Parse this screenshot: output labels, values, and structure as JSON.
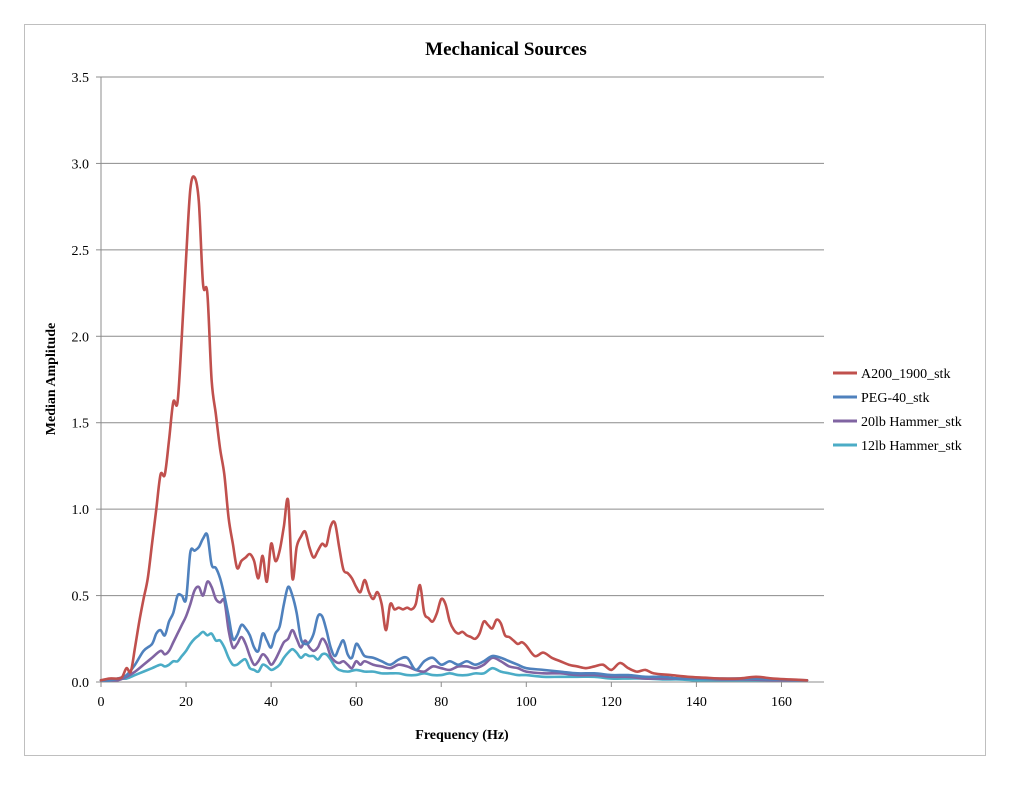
{
  "chart_data": {
    "type": "line",
    "title": "Mechanical Sources",
    "xlabel": "Frequency (Hz)",
    "ylabel": "Median Amplitude",
    "xlim": [
      0,
      170
    ],
    "ylim": [
      0,
      3.5
    ],
    "x_ticks": [
      "0",
      "20",
      "40",
      "60",
      "80",
      "100",
      "120",
      "140",
      "160"
    ],
    "y_ticks": [
      "0.0",
      "0.5",
      "1.0",
      "1.5",
      "2.0",
      "2.5",
      "3.0",
      "3.5"
    ],
    "grid": "horizontal",
    "legend_position": "right",
    "series": [
      {
        "name": "A200_1900_stk",
        "color": "#c0504d",
        "x": [
          0,
          2,
          4,
          5,
          6,
          7,
          8,
          9,
          10,
          11,
          12,
          13,
          14,
          15,
          16,
          17,
          18,
          19,
          20,
          21,
          22,
          23,
          24,
          25,
          26,
          27,
          28,
          29,
          30,
          31,
          32,
          33,
          34,
          35,
          36,
          37,
          38,
          39,
          40,
          41,
          42,
          43,
          44,
          45,
          46,
          47,
          48,
          49,
          50,
          51,
          52,
          53,
          54,
          55,
          56,
          57,
          58,
          59,
          60,
          61,
          62,
          63,
          64,
          65,
          66,
          67,
          68,
          69,
          70,
          71,
          72,
          73,
          74,
          75,
          76,
          77,
          78,
          79,
          80,
          81,
          82,
          83,
          84,
          85,
          86,
          87,
          88,
          89,
          90,
          91,
          92,
          93,
          94,
          95,
          96,
          97,
          98,
          99,
          100,
          102,
          104,
          106,
          108,
          110,
          112,
          114,
          116,
          118,
          120,
          122,
          124,
          126,
          128,
          130,
          134,
          138,
          142,
          146,
          150,
          154,
          158,
          162,
          166
        ],
        "y": [
          0.01,
          0.02,
          0.02,
          0.03,
          0.08,
          0.06,
          0.2,
          0.35,
          0.48,
          0.6,
          0.8,
          1.0,
          1.2,
          1.2,
          1.4,
          1.62,
          1.62,
          2.0,
          2.45,
          2.85,
          2.92,
          2.78,
          2.3,
          2.25,
          1.75,
          1.55,
          1.35,
          1.2,
          0.95,
          0.8,
          0.66,
          0.7,
          0.72,
          0.74,
          0.7,
          0.6,
          0.73,
          0.58,
          0.8,
          0.7,
          0.76,
          0.9,
          1.05,
          0.6,
          0.78,
          0.84,
          0.87,
          0.78,
          0.72,
          0.76,
          0.8,
          0.79,
          0.9,
          0.92,
          0.78,
          0.65,
          0.63,
          0.6,
          0.55,
          0.52,
          0.59,
          0.52,
          0.48,
          0.52,
          0.45,
          0.3,
          0.45,
          0.42,
          0.43,
          0.42,
          0.43,
          0.42,
          0.45,
          0.56,
          0.4,
          0.37,
          0.35,
          0.4,
          0.48,
          0.45,
          0.35,
          0.3,
          0.28,
          0.29,
          0.27,
          0.26,
          0.25,
          0.28,
          0.35,
          0.33,
          0.31,
          0.36,
          0.34,
          0.27,
          0.26,
          0.24,
          0.22,
          0.23,
          0.21,
          0.15,
          0.17,
          0.14,
          0.12,
          0.1,
          0.09,
          0.08,
          0.09,
          0.1,
          0.07,
          0.11,
          0.08,
          0.06,
          0.07,
          0.05,
          0.04,
          0.03,
          0.025,
          0.02,
          0.02,
          0.03,
          0.02,
          0.015,
          0.01
        ]
      },
      {
        "name": "PEG-40_stk",
        "color": "#4f81bd",
        "x": [
          0,
          2,
          4,
          6,
          8,
          10,
          12,
          13,
          14,
          15,
          16,
          17,
          18,
          19,
          20,
          21,
          22,
          23,
          24,
          25,
          26,
          27,
          28,
          29,
          30,
          31,
          32,
          33,
          34,
          35,
          36,
          37,
          38,
          39,
          40,
          41,
          42,
          43,
          44,
          45,
          46,
          47,
          48,
          49,
          50,
          51,
          52,
          53,
          54,
          55,
          56,
          57,
          58,
          59,
          60,
          61,
          62,
          64,
          66,
          68,
          70,
          72,
          74,
          76,
          78,
          80,
          82,
          84,
          86,
          88,
          90,
          92,
          94,
          96,
          98,
          100,
          104,
          108,
          112,
          116,
          120,
          124,
          128,
          132,
          136,
          140,
          146,
          152,
          158,
          166
        ],
        "y": [
          0.01,
          0.01,
          0.02,
          0.04,
          0.1,
          0.18,
          0.22,
          0.28,
          0.3,
          0.27,
          0.35,
          0.4,
          0.5,
          0.5,
          0.48,
          0.75,
          0.76,
          0.78,
          0.83,
          0.85,
          0.68,
          0.66,
          0.6,
          0.5,
          0.38,
          0.25,
          0.27,
          0.33,
          0.31,
          0.27,
          0.2,
          0.18,
          0.28,
          0.24,
          0.2,
          0.28,
          0.32,
          0.45,
          0.55,
          0.5,
          0.4,
          0.25,
          0.22,
          0.23,
          0.28,
          0.38,
          0.38,
          0.3,
          0.2,
          0.15,
          0.2,
          0.24,
          0.16,
          0.14,
          0.22,
          0.19,
          0.15,
          0.14,
          0.12,
          0.1,
          0.13,
          0.14,
          0.07,
          0.12,
          0.14,
          0.1,
          0.12,
          0.1,
          0.12,
          0.1,
          0.12,
          0.15,
          0.14,
          0.12,
          0.1,
          0.08,
          0.07,
          0.06,
          0.05,
          0.05,
          0.04,
          0.04,
          0.03,
          0.03,
          0.02,
          0.02,
          0.02,
          0.02,
          0.015,
          0.01
        ]
      },
      {
        "name": "20lb Hammer_stk",
        "color": "#8064a2",
        "x": [
          0,
          2,
          4,
          6,
          8,
          10,
          12,
          14,
          15,
          16,
          17,
          18,
          19,
          20,
          21,
          22,
          23,
          24,
          25,
          26,
          27,
          28,
          29,
          30,
          31,
          32,
          33,
          34,
          35,
          36,
          37,
          38,
          39,
          40,
          41,
          42,
          43,
          44,
          45,
          46,
          47,
          48,
          49,
          50,
          51,
          52,
          53,
          54,
          55,
          56,
          57,
          58,
          59,
          60,
          61,
          62,
          64,
          66,
          68,
          70,
          72,
          74,
          76,
          78,
          80,
          82,
          84,
          86,
          88,
          90,
          92,
          94,
          96,
          98,
          100,
          104,
          108,
          112,
          116,
          120,
          124,
          128,
          132,
          136,
          140,
          146,
          152,
          158,
          166
        ],
        "y": [
          0.01,
          0.01,
          0.01,
          0.03,
          0.06,
          0.1,
          0.14,
          0.18,
          0.16,
          0.18,
          0.23,
          0.28,
          0.33,
          0.38,
          0.45,
          0.53,
          0.55,
          0.5,
          0.58,
          0.55,
          0.48,
          0.46,
          0.47,
          0.3,
          0.2,
          0.22,
          0.26,
          0.22,
          0.15,
          0.1,
          0.12,
          0.16,
          0.14,
          0.1,
          0.13,
          0.18,
          0.23,
          0.25,
          0.3,
          0.25,
          0.2,
          0.24,
          0.2,
          0.18,
          0.2,
          0.25,
          0.22,
          0.15,
          0.12,
          0.11,
          0.12,
          0.1,
          0.08,
          0.12,
          0.1,
          0.12,
          0.1,
          0.09,
          0.08,
          0.1,
          0.09,
          0.07,
          0.06,
          0.09,
          0.08,
          0.07,
          0.09,
          0.09,
          0.08,
          0.1,
          0.14,
          0.12,
          0.09,
          0.08,
          0.06,
          0.05,
          0.05,
          0.04,
          0.04,
          0.03,
          0.03,
          0.02,
          0.02,
          0.02,
          0.02,
          0.015,
          0.015,
          0.01,
          0.01
        ]
      },
      {
        "name": "12lb Hammer_stk",
        "color": "#4bacc6",
        "x": [
          0,
          2,
          4,
          6,
          8,
          10,
          12,
          14,
          15,
          16,
          17,
          18,
          19,
          20,
          21,
          22,
          23,
          24,
          25,
          26,
          27,
          28,
          29,
          30,
          31,
          32,
          33,
          34,
          35,
          36,
          37,
          38,
          39,
          40,
          41,
          42,
          43,
          44,
          45,
          46,
          47,
          48,
          49,
          50,
          51,
          52,
          53,
          54,
          55,
          56,
          58,
          60,
          62,
          64,
          66,
          68,
          70,
          72,
          74,
          76,
          78,
          80,
          82,
          84,
          86,
          88,
          90,
          92,
          94,
          96,
          98,
          100,
          104,
          108,
          112,
          116,
          120,
          124,
          128,
          132,
          136,
          140,
          146,
          152,
          158,
          166
        ],
        "y": [
          0.01,
          0.01,
          0.02,
          0.02,
          0.04,
          0.06,
          0.08,
          0.1,
          0.09,
          0.1,
          0.12,
          0.12,
          0.15,
          0.18,
          0.22,
          0.25,
          0.27,
          0.29,
          0.27,
          0.28,
          0.24,
          0.24,
          0.2,
          0.14,
          0.1,
          0.1,
          0.12,
          0.13,
          0.08,
          0.07,
          0.06,
          0.1,
          0.09,
          0.07,
          0.08,
          0.1,
          0.14,
          0.17,
          0.19,
          0.17,
          0.14,
          0.16,
          0.15,
          0.15,
          0.13,
          0.16,
          0.16,
          0.13,
          0.09,
          0.07,
          0.06,
          0.07,
          0.06,
          0.06,
          0.05,
          0.05,
          0.05,
          0.04,
          0.04,
          0.05,
          0.04,
          0.04,
          0.05,
          0.04,
          0.04,
          0.05,
          0.05,
          0.08,
          0.06,
          0.05,
          0.04,
          0.04,
          0.03,
          0.03,
          0.03,
          0.03,
          0.02,
          0.02,
          0.02,
          0.015,
          0.015,
          0.01,
          0.01,
          0.01,
          0.01,
          0.01
        ]
      }
    ]
  }
}
